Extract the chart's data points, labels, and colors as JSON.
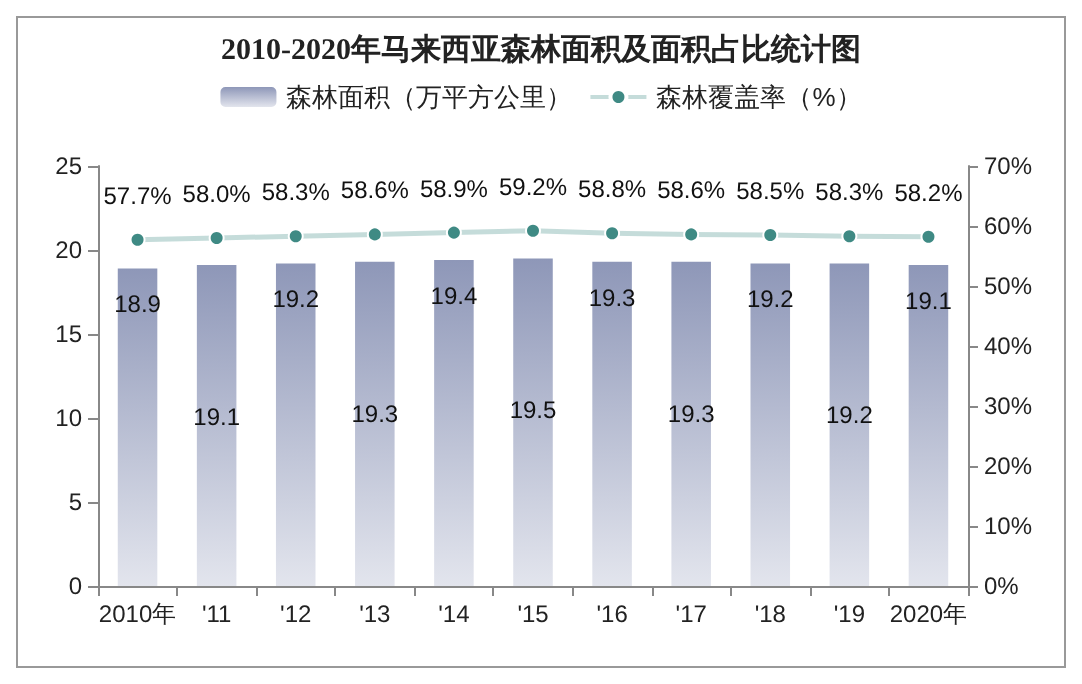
{
  "chart_data": {
    "type": "bar",
    "title": "2010-2020年马来西亚森林面积及面积占比统计图",
    "categories": [
      "2010年",
      "'11",
      "'12",
      "'13",
      "'14",
      "'15",
      "'16",
      "'17",
      "'18",
      "'19",
      "2020年"
    ],
    "series": [
      {
        "name": "森林面积（万平方公里）",
        "color": "#8e97b8",
        "values": [
          18.9,
          19.1,
          19.2,
          19.3,
          19.4,
          19.5,
          19.3,
          19.3,
          19.2,
          19.2,
          19.1
        ]
      },
      {
        "name": "森林覆盖率（%）",
        "type": "line",
        "axis": "y2",
        "color": "#3f8a84",
        "values": [
          57.7,
          58.0,
          58.3,
          58.6,
          58.9,
          59.2,
          58.8,
          58.6,
          58.5,
          58.3,
          58.2
        ],
        "value_labels": [
          "57.7%",
          "58.0%",
          "58.3%",
          "58.6%",
          "58.9%",
          "59.2%",
          "58.8%",
          "58.6%",
          "58.5%",
          "58.3%",
          "58.2%"
        ]
      }
    ],
    "ylim": [
      0,
      25
    ],
    "yticks": [
      0,
      5,
      10,
      15,
      20,
      25
    ],
    "y2lim": [
      0,
      70
    ],
    "y2ticks": [
      {
        "value": 0,
        "label": "0%"
      },
      {
        "value": 10,
        "label": "10%"
      },
      {
        "value": 20,
        "label": "20%"
      },
      {
        "value": 30,
        "label": "30%"
      },
      {
        "value": 40,
        "label": "40%"
      },
      {
        "value": 50,
        "label": "50%"
      },
      {
        "value": 60,
        "label": "60%"
      },
      {
        "value": 70,
        "label": "70%"
      }
    ],
    "data_labels": true,
    "legend": "top",
    "marker": "circle",
    "grid": false
  }
}
